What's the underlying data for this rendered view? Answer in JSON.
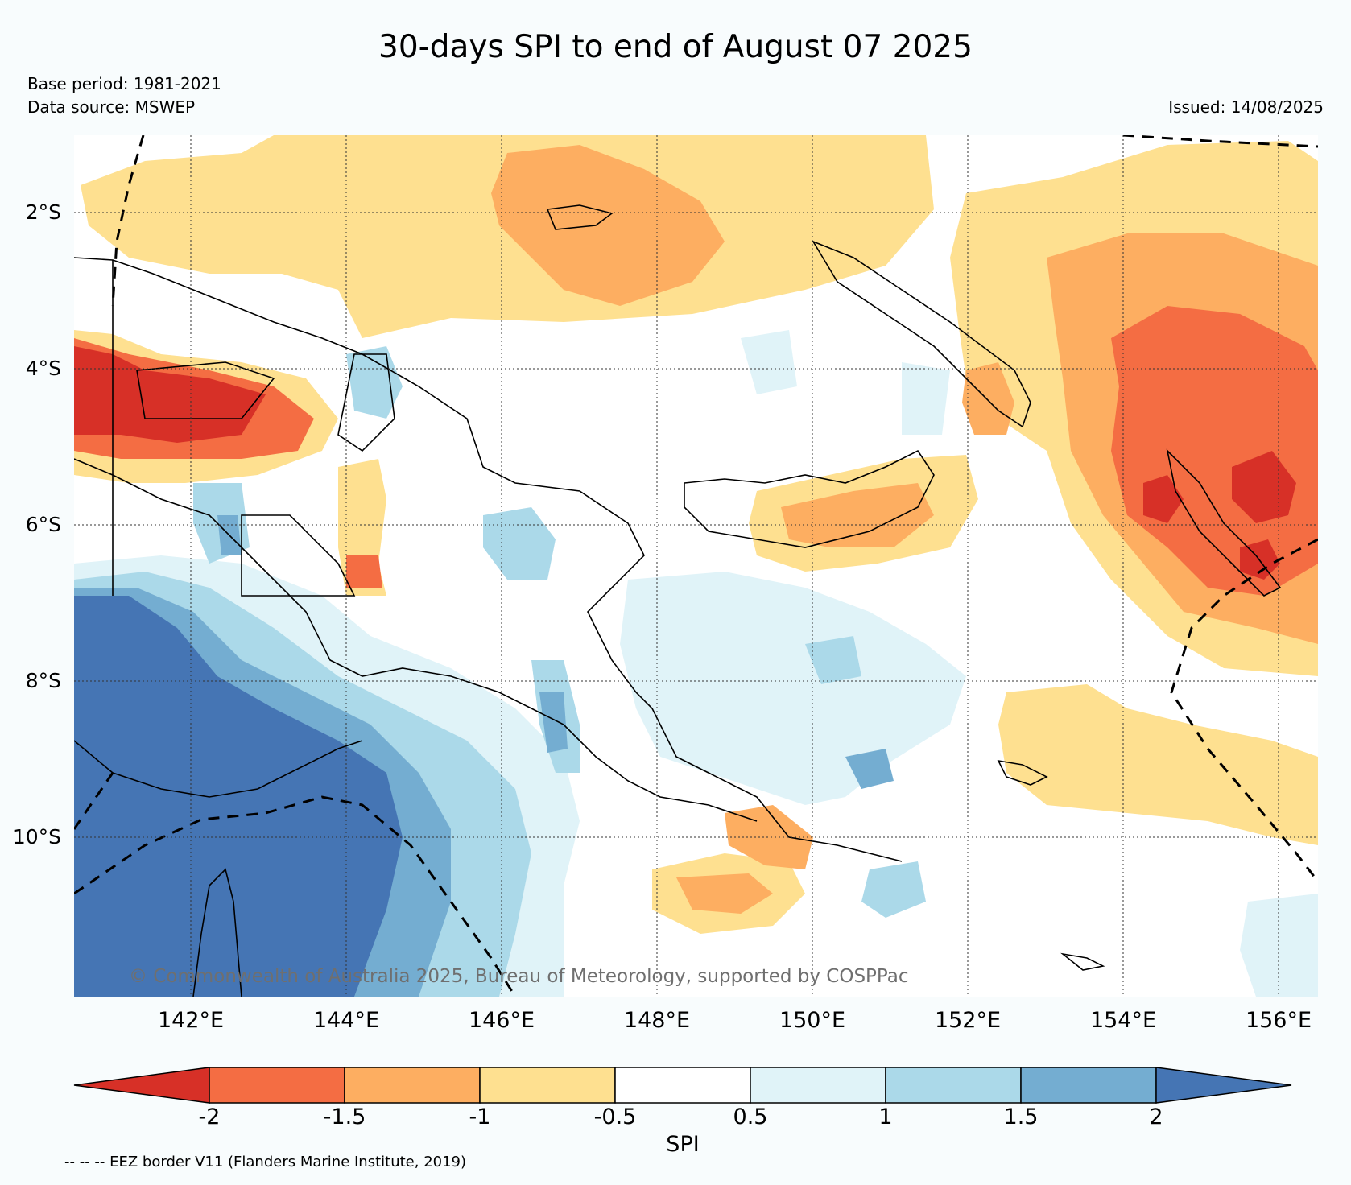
{
  "title": "30-days SPI to end of August 07 2025",
  "base_period": "Base period: 1981-2021",
  "data_source": "Data source: MSWEP",
  "issued": "Issued: 14/08/2025",
  "copyright": "© Commonwealth of Australia 2025, Bureau of Meteorology, supported by COSPPac",
  "eez_note": "-- -- -- EEZ border V11 (Flanders Marine Institute, 2019)",
  "map": {
    "lat_labels": [
      "2°S",
      "4°S",
      "6°S",
      "8°S",
      "10°S"
    ],
    "lon_labels": [
      "142°E",
      "144°E",
      "146°E",
      "148°E",
      "150°E",
      "152°E",
      "154°E",
      "156°E"
    ],
    "lat_range": [
      -11.9,
      -1.0
    ],
    "lon_range": [
      140.5,
      156.5
    ],
    "grid": "dotted"
  },
  "colorbar": {
    "title": "SPI",
    "ticks": [
      "-2",
      "-1.5",
      "-1",
      "-0.5",
      "0.5",
      "1",
      "1.5",
      "2"
    ],
    "colors": {
      "lt_-2": "#d73027",
      "-2_-1.5": "#f46d43",
      "-1.5_-1": "#fdae61",
      "-1_-0.5": "#fee090",
      "-0.5_0.5": "#ffffff",
      "0.5_1": "#e0f3f8",
      "1_1.5": "#abd9e9",
      "1.5_2": "#74add1",
      "gt_2": "#4575b4"
    }
  }
}
